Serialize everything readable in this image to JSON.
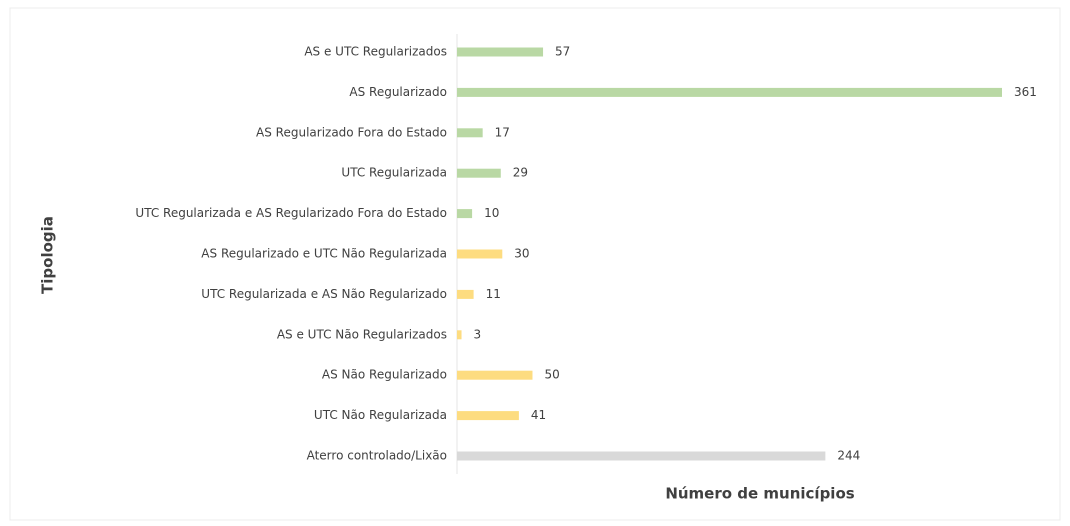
{
  "chart_data": {
    "type": "barh",
    "ylabel": "Tipologia",
    "xlabel": "Número de municípios",
    "categories": [
      "AS e UTC Regularizados",
      "AS Regularizado",
      "AS Regularizado Fora do Estado",
      "UTC Regularizada",
      "UTC Regularizada e AS Regularizado Fora do Estado",
      "AS Regularizado e UTC Não Regularizada",
      "UTC Regularizada e AS Não Regularizado",
      "AS e UTC Não Regularizados",
      "AS Não Regularizado",
      "UTC Não Regularizada",
      "Aterro controlado/Lixão"
    ],
    "values": [
      57,
      361,
      17,
      29,
      10,
      30,
      11,
      3,
      50,
      41,
      244
    ],
    "colors": [
      "#b9d8a4",
      "#b9d8a4",
      "#b9d8a4",
      "#b9d8a4",
      "#b9d8a4",
      "#fddc80",
      "#fddc80",
      "#fddc80",
      "#fddc80",
      "#fddc80",
      "#d9d9d9"
    ]
  }
}
